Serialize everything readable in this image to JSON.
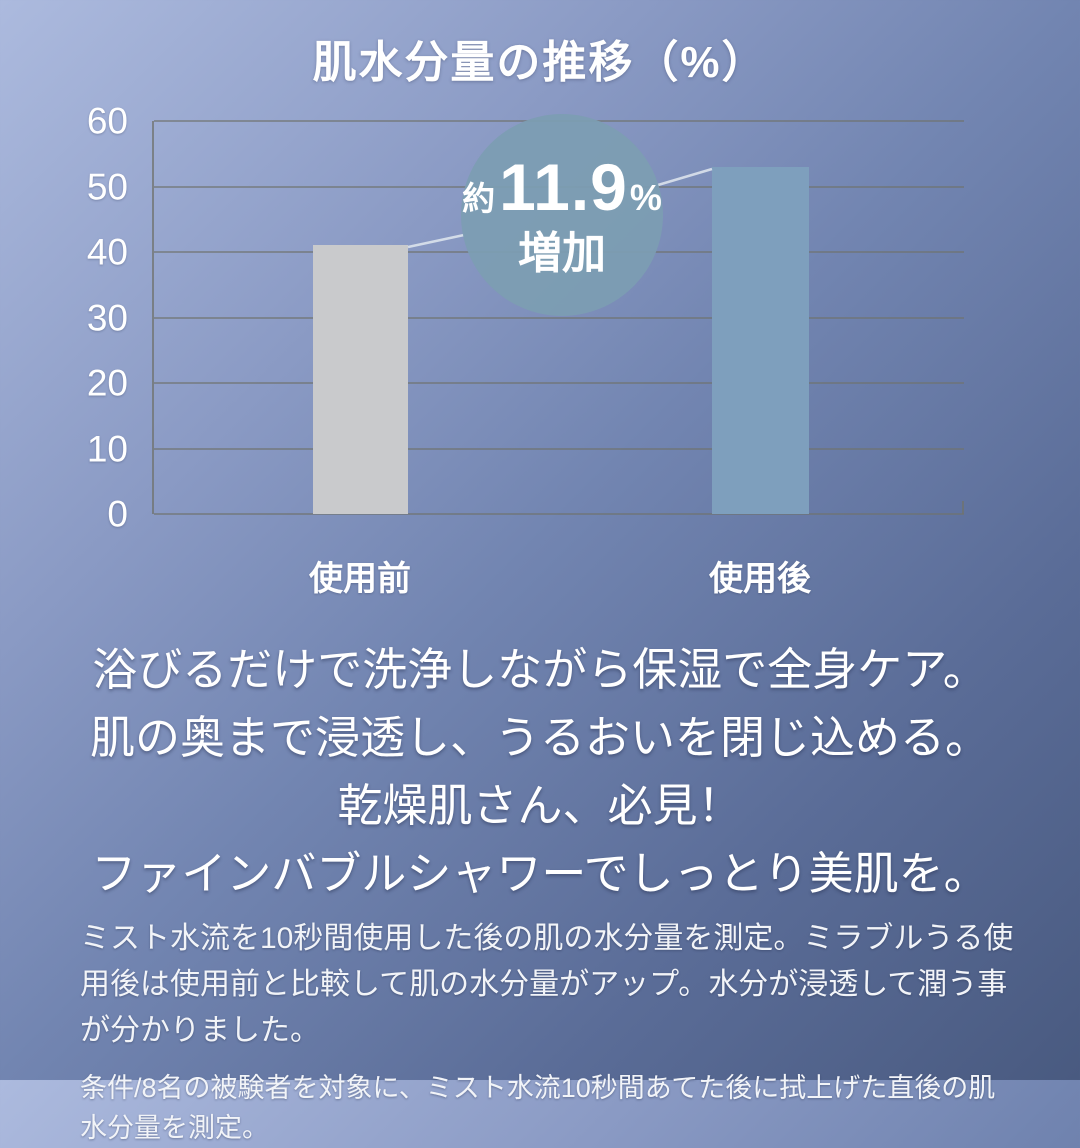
{
  "title": "肌水分量の推移（%）",
  "chart_data": {
    "type": "bar",
    "title": "肌水分量の推移（%）",
    "categories": [
      "使用前",
      "使用後"
    ],
    "values": [
      41,
      53
    ],
    "xlabel": "",
    "ylabel": "",
    "ylim": [
      0,
      60
    ],
    "yticks": [
      0,
      10,
      20,
      30,
      40,
      50,
      60
    ],
    "grid": true,
    "legend": "none",
    "bar_colors": [
      "#c9cacc",
      "#7e9fbd"
    ],
    "annotation": {
      "approx": "約",
      "value": "11.9",
      "percent": "%",
      "label": "増加",
      "bubble_color": "#7c9db2"
    }
  },
  "body": {
    "lines": [
      "浴びるだけで洗浄しながら保湿で全身ケア。",
      "肌の奥まで浸透し、うるおいを閉じ込める。",
      "乾燥肌さん、必見！",
      "ファインバブルシャワーでしっとり美肌を。"
    ]
  },
  "footnotes": {
    "line1": "ミスト水流を10秒間使用した後の肌の水分量を測定。ミラブルうる使用後は使用前と比較して肌の水分量がアップ。水分が浸透して潤う事が分かりました。",
    "line2": "条件/8名の被験者を対象に、ミスト水流10秒間あてた後に拭上げた直後の肌水分量を測定。"
  },
  "colors": {
    "background_top_left": "#a9b8dd",
    "background_bottom_right": "#4a5a82",
    "bar_before": "#c9cacc",
    "bar_after": "#7e9fbd",
    "bubble": "#7c9db2",
    "gridline": "#70736e",
    "text": "#ffffff"
  }
}
